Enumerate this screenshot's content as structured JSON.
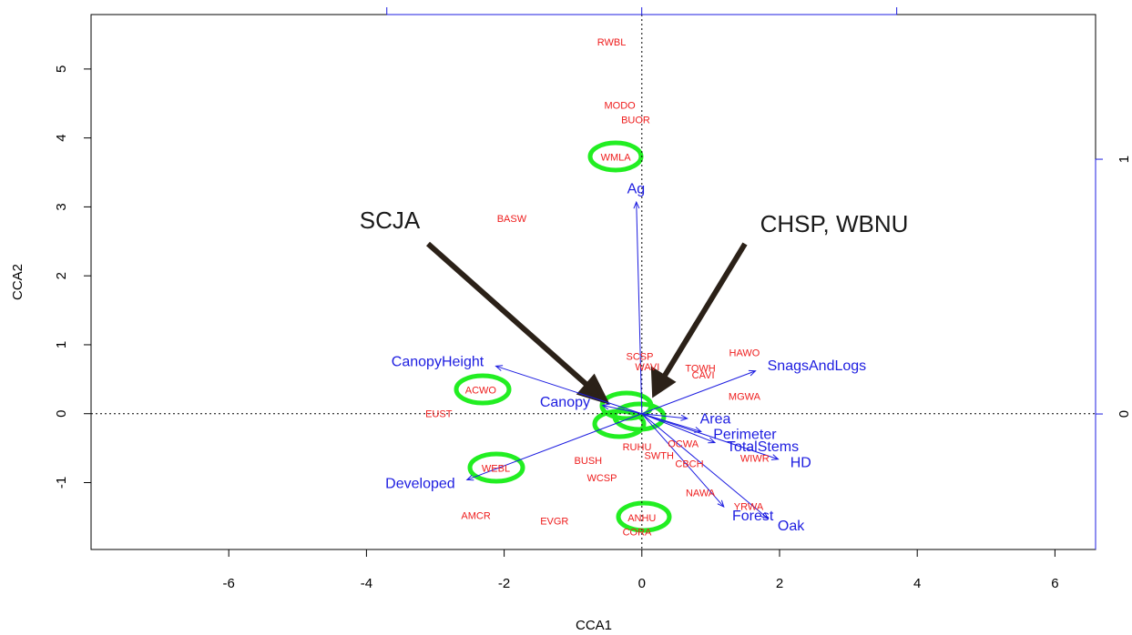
{
  "chart_data": {
    "type": "biplot",
    "xlabel": "CCA1",
    "ylabel": "CCA2",
    "xlim": [
      -8.0,
      6.59
    ],
    "ylim": [
      -1.97,
      5.79
    ],
    "xticks": [
      -6,
      -4,
      -2,
      0,
      2,
      4,
      6
    ],
    "yticks": [
      -1,
      0,
      1,
      2,
      3,
      4,
      5
    ],
    "x2lim": [
      -2.16,
      1.78
    ],
    "x2ticks": [
      -1,
      0,
      1
    ],
    "y2lim": [
      -0.532,
      1.568
    ],
    "y2ticks": [
      0,
      1
    ],
    "species": {
      "color": "#ee1c1c",
      "labels": [
        "RWBL",
        "MODO",
        "BUOR",
        "WMLA",
        "BASW",
        "SCSP",
        "HAWO",
        "WAVI",
        "TOWH",
        "CAVI",
        "MGWA",
        "ACWO",
        "EUST",
        "RUHU",
        "BUSH",
        "WIWR",
        "WCSP",
        "WEBL",
        "NAWA",
        "YRWA",
        "AMCR",
        "EVGR",
        "ANHU",
        "CORA",
        "CBCH",
        "SWTH",
        "OCWA"
      ],
      "x": [
        -0.44,
        -0.32,
        -0.09,
        -0.38,
        -1.89,
        -0.03,
        1.49,
        0.08,
        0.85,
        0.89,
        1.49,
        -2.34,
        -2.95,
        -0.07,
        -0.78,
        1.64,
        -0.58,
        -2.12,
        0.85,
        1.55,
        -2.41,
        -1.27,
        0.0,
        -0.07,
        0.69,
        0.25,
        0.6
      ],
      "y": [
        5.38,
        4.46,
        4.25,
        3.71,
        2.82,
        0.82,
        0.87,
        0.67,
        0.65,
        0.55,
        0.24,
        0.33,
        -0.01,
        -0.49,
        -0.69,
        -0.66,
        -0.94,
        -0.8,
        -1.16,
        -1.36,
        -1.49,
        -1.57,
        -1.52,
        -1.73,
        -0.74,
        -0.62,
        -0.45
      ]
    },
    "vectors": {
      "color": "#1c1ce0",
      "labels": [
        "Ag",
        "CanopyHeight",
        "SnagsAndLogs",
        "Area",
        "Perimeter",
        "TotalStems",
        "HD",
        "Forest",
        "Oak",
        "Developed",
        "Canopy"
      ],
      "x": [
        -0.08,
        -2.12,
        1.65,
        0.66,
        0.86,
        1.06,
        1.98,
        1.19,
        1.83,
        -2.54,
        -0.57
      ],
      "y": [
        3.07,
        0.69,
        0.62,
        -0.07,
        -0.26,
        -0.42,
        -0.66,
        -1.35,
        -1.52,
        -0.96,
        0.12
      ]
    },
    "annotations": [
      "SCJA",
      "CHSP, WBNU"
    ]
  }
}
